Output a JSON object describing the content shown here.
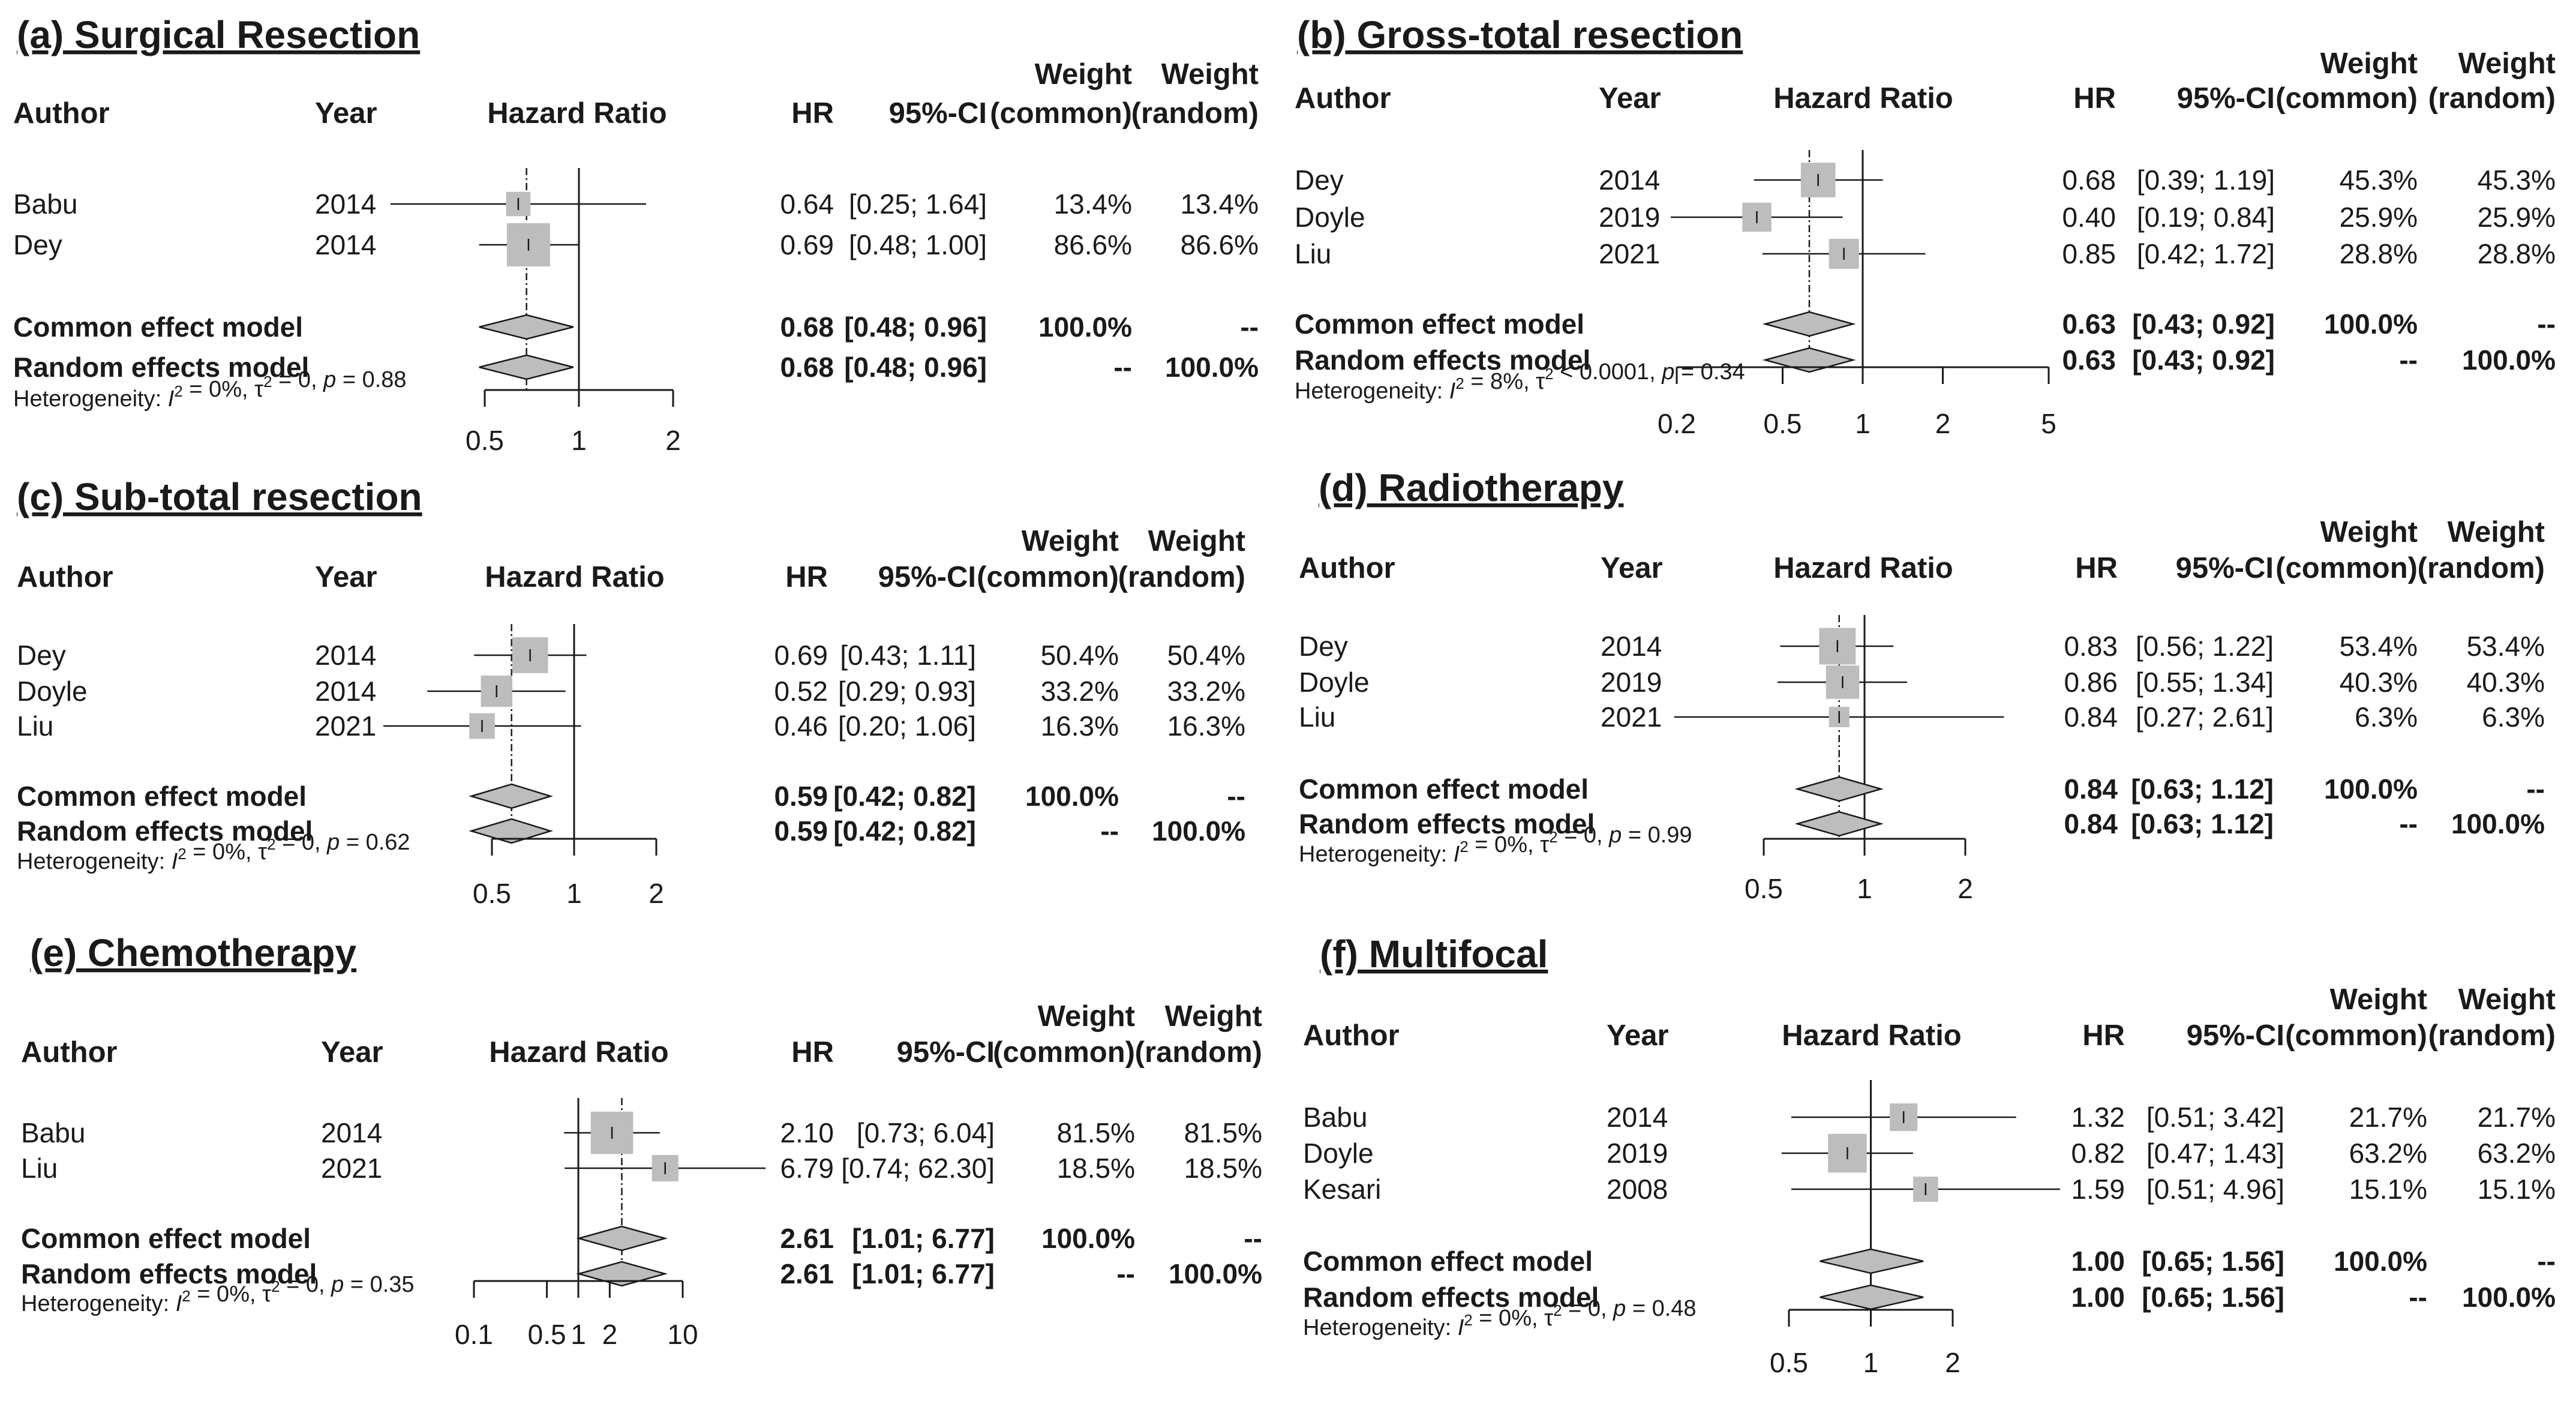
{
  "columns": {
    "author": "Author",
    "year": "Year",
    "plot": "Hazard Ratio",
    "hr": "HR",
    "ci": "95%-CI",
    "weight": "Weight",
    "common": "(common)",
    "random": "(random)"
  },
  "chart_data": [
    {
      "type": "forest",
      "title": "(a) Surgical Resection",
      "scale": "log",
      "ticks": [
        "0.5",
        "1",
        "2"
      ],
      "xlim": [
        0.5,
        2
      ],
      "studies": [
        {
          "author": "Babu",
          "year": "2014",
          "hr": 0.64,
          "lo": 0.25,
          "hi": 1.64,
          "hr_text": "0.64",
          "ci_text": "[0.25; 1.64]",
          "w_common": "13.4%",
          "w_random": "13.4%",
          "weight": 13.4
        },
        {
          "author": "Dey",
          "year": "2014",
          "hr": 0.69,
          "lo": 0.48,
          "hi": 1.0,
          "hr_text": "0.69",
          "ci_text": "[0.48; 1.00]",
          "w_common": "86.6%",
          "w_random": "86.6%",
          "weight": 86.6
        }
      ],
      "common": {
        "label": "Common effect model",
        "hr": 0.68,
        "lo": 0.48,
        "hi": 0.96,
        "hr_text": "0.68",
        "ci_text": "[0.48; 0.96]",
        "w_common": "100.0%",
        "w_random": "--"
      },
      "random": {
        "label": "Random effects model",
        "hr": 0.68,
        "lo": 0.48,
        "hi": 0.96,
        "hr_text": "0.68",
        "ci_text": "[0.48; 0.96]",
        "w_common": "--",
        "w_random": "100.0%"
      },
      "het": {
        "prefix": "Heterogeneity: ",
        "i2": "I",
        "i2_val": " = 0%, ",
        "tau": "τ",
        "tau_val": " = 0, ",
        "p": "p",
        "p_val": " = 0.88"
      }
    },
    {
      "type": "forest",
      "title": "(b) Gross-total resection",
      "scale": "log",
      "ticks": [
        "0.2",
        "0.5",
        "1",
        "2",
        "5"
      ],
      "xlim": [
        0.2,
        5
      ],
      "studies": [
        {
          "author": "Dey",
          "year": "2014",
          "hr": 0.68,
          "lo": 0.39,
          "hi": 1.19,
          "hr_text": "0.68",
          "ci_text": "[0.39; 1.19]",
          "w_common": "45.3%",
          "w_random": "45.3%",
          "weight": 45.3
        },
        {
          "author": "Doyle",
          "year": "2019",
          "hr": 0.4,
          "lo": 0.19,
          "hi": 0.84,
          "hr_text": "0.40",
          "ci_text": "[0.19; 0.84]",
          "w_common": "25.9%",
          "w_random": "25.9%",
          "weight": 25.9
        },
        {
          "author": "Liu",
          "year": "2021",
          "hr": 0.85,
          "lo": 0.42,
          "hi": 1.72,
          "hr_text": "0.85",
          "ci_text": "[0.42; 1.72]",
          "w_common": "28.8%",
          "w_random": "28.8%",
          "weight": 28.8
        }
      ],
      "common": {
        "label": "Common effect model",
        "hr": 0.63,
        "lo": 0.43,
        "hi": 0.92,
        "hr_text": "0.63",
        "ci_text": "[0.43; 0.92]",
        "w_common": "100.0%",
        "w_random": "--"
      },
      "random": {
        "label": "Random effects model",
        "hr": 0.63,
        "lo": 0.43,
        "hi": 0.92,
        "hr_text": "0.63",
        "ci_text": "[0.43; 0.92]",
        "w_common": "--",
        "w_random": "100.0%"
      },
      "het": {
        "prefix": "Heterogeneity: ",
        "i2": "I",
        "i2_val": " = 8%, ",
        "tau": "τ",
        "tau_val": " < 0.0001, ",
        "p": "p",
        "p_val": " = 0.34"
      }
    },
    {
      "type": "forest",
      "title": "(c) Sub-total resection",
      "scale": "log",
      "ticks": [
        "0.5",
        "1",
        "2"
      ],
      "xlim": [
        0.5,
        2
      ],
      "studies": [
        {
          "author": "Dey",
          "year": "2014",
          "hr": 0.69,
          "lo": 0.43,
          "hi": 1.11,
          "hr_text": "0.69",
          "ci_text": "[0.43; 1.11]",
          "w_common": "50.4%",
          "w_random": "50.4%",
          "weight": 50.4
        },
        {
          "author": "Doyle",
          "year": "2014",
          "hr": 0.52,
          "lo": 0.29,
          "hi": 0.93,
          "hr_text": "0.52",
          "ci_text": "[0.29; 0.93]",
          "w_common": "33.2%",
          "w_random": "33.2%",
          "weight": 33.2
        },
        {
          "author": "Liu",
          "year": "2021",
          "hr": 0.46,
          "lo": 0.2,
          "hi": 1.06,
          "hr_text": "0.46",
          "ci_text": "[0.20; 1.06]",
          "w_common": "16.3%",
          "w_random": "16.3%",
          "weight": 16.3
        }
      ],
      "common": {
        "label": "Common effect model",
        "hr": 0.59,
        "lo": 0.42,
        "hi": 0.82,
        "hr_text": "0.59",
        "ci_text": "[0.42; 0.82]",
        "w_common": "100.0%",
        "w_random": "--"
      },
      "random": {
        "label": "Random effects model",
        "hr": 0.59,
        "lo": 0.42,
        "hi": 0.82,
        "hr_text": "0.59",
        "ci_text": "[0.42; 0.82]",
        "w_common": "--",
        "w_random": "100.0%"
      },
      "het": {
        "prefix": "Heterogeneity: ",
        "i2": "I",
        "i2_val": " = 0%, ",
        "tau": "τ",
        "tau_val": " = 0, ",
        "p": "p",
        "p_val": " = 0.62"
      }
    },
    {
      "type": "forest",
      "title": "(d) Radiotherapy",
      "scale": "log",
      "ticks": [
        "0.5",
        "1",
        "2"
      ],
      "xlim": [
        0.5,
        2
      ],
      "studies": [
        {
          "author": "Dey",
          "year": "2014",
          "hr": 0.83,
          "lo": 0.56,
          "hi": 1.22,
          "hr_text": "0.83",
          "ci_text": "[0.56; 1.22]",
          "w_common": "53.4%",
          "w_random": "53.4%",
          "weight": 53.4
        },
        {
          "author": "Doyle",
          "year": "2019",
          "hr": 0.86,
          "lo": 0.55,
          "hi": 1.34,
          "hr_text": "0.86",
          "ci_text": "[0.55; 1.34]",
          "w_common": "40.3%",
          "w_random": "40.3%",
          "weight": 40.3
        },
        {
          "author": "Liu",
          "year": "2021",
          "hr": 0.84,
          "lo": 0.27,
          "hi": 2.61,
          "hr_text": "0.84",
          "ci_text": "[0.27; 2.61]",
          "w_common": "6.3%",
          "w_random": "6.3%",
          "weight": 6.3
        }
      ],
      "common": {
        "label": "Common effect model",
        "hr": 0.84,
        "lo": 0.63,
        "hi": 1.12,
        "hr_text": "0.84",
        "ci_text": "[0.63; 1.12]",
        "w_common": "100.0%",
        "w_random": "--"
      },
      "random": {
        "label": "Random effects model",
        "hr": 0.84,
        "lo": 0.63,
        "hi": 1.12,
        "hr_text": "0.84",
        "ci_text": "[0.63; 1.12]",
        "w_common": "--",
        "w_random": "100.0%"
      },
      "het": {
        "prefix": "Heterogeneity: ",
        "i2": "I",
        "i2_val": " = 0%, ",
        "tau": "τ",
        "tau_val": " = 0, ",
        "p": "p",
        "p_val": " = 0.99"
      }
    },
    {
      "type": "forest",
      "title": "(e) Chemotherapy",
      "scale": "log",
      "ticks": [
        "0.1",
        "0.5",
        "1",
        "2",
        "10"
      ],
      "xlim": [
        0.1,
        10
      ],
      "studies": [
        {
          "author": "Babu",
          "year": "2014",
          "hr": 2.1,
          "lo": 0.73,
          "hi": 6.04,
          "hr_text": "2.10",
          "ci_text": "[0.73;  6.04]",
          "w_common": "81.5%",
          "w_random": "81.5%",
          "weight": 81.5
        },
        {
          "author": "Liu",
          "year": "2021",
          "hr": 6.79,
          "lo": 0.74,
          "hi": 62.3,
          "hr_text": "6.79",
          "ci_text": "[0.74; 62.30]",
          "w_common": "18.5%",
          "w_random": "18.5%",
          "weight": 18.5
        }
      ],
      "common": {
        "label": "Common effect model",
        "hr": 2.61,
        "lo": 1.01,
        "hi": 6.77,
        "hr_text": "2.61",
        "ci_text": "[1.01;  6.77]",
        "w_common": "100.0%",
        "w_random": "--"
      },
      "random": {
        "label": "Random effects model",
        "hr": 2.61,
        "lo": 1.01,
        "hi": 6.77,
        "hr_text": "2.61",
        "ci_text": "[1.01;  6.77]",
        "w_common": "--",
        "w_random": "100.0%"
      },
      "het": {
        "prefix": "Heterogeneity: ",
        "i2": "I",
        "i2_val": " = 0%, ",
        "tau": "τ",
        "tau_val": " = 0, ",
        "p": "p",
        "p_val": " = 0.35"
      }
    },
    {
      "type": "forest",
      "title": "(f) Multifocal",
      "scale": "log",
      "ticks": [
        "0.5",
        "1",
        "2"
      ],
      "xlim": [
        0.5,
        2
      ],
      "studies": [
        {
          "author": "Babu",
          "year": "2014",
          "hr": 1.32,
          "lo": 0.51,
          "hi": 3.42,
          "hr_text": "1.32",
          "ci_text": "[0.51; 3.42]",
          "w_common": "21.7%",
          "w_random": "21.7%",
          "weight": 21.7
        },
        {
          "author": "Doyle",
          "year": "2019",
          "hr": 0.82,
          "lo": 0.47,
          "hi": 1.43,
          "hr_text": "0.82",
          "ci_text": "[0.47; 1.43]",
          "w_common": "63.2%",
          "w_random": "63.2%",
          "weight": 63.2
        },
        {
          "author": "Kesari",
          "year": "2008",
          "hr": 1.59,
          "lo": 0.51,
          "hi": 4.96,
          "hr_text": "1.59",
          "ci_text": "[0.51; 4.96]",
          "w_common": "15.1%",
          "w_random": "15.1%",
          "weight": 15.1
        }
      ],
      "common": {
        "label": "Common effect model",
        "hr": 1.0,
        "lo": 0.65,
        "hi": 1.56,
        "hr_text": "1.00",
        "ci_text": "[0.65; 1.56]",
        "w_common": "100.0%",
        "w_random": "--"
      },
      "random": {
        "label": "Random effects model",
        "hr": 1.0,
        "lo": 0.65,
        "hi": 1.56,
        "hr_text": "1.00",
        "ci_text": "[0.65; 1.56]",
        "w_common": "--",
        "w_random": "100.0%"
      },
      "het": {
        "prefix": "Heterogeneity: ",
        "i2": "I",
        "i2_val": " = 0%, ",
        "tau": "τ",
        "tau_val": " = 0, ",
        "p": "p",
        "p_val": " = 0.48"
      }
    }
  ]
}
